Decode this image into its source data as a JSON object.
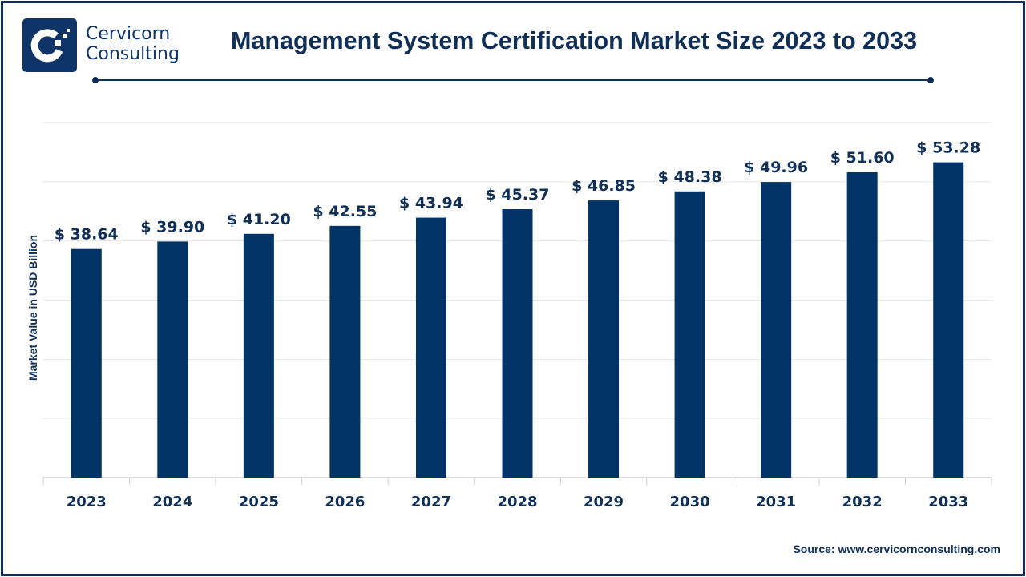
{
  "brand": {
    "line1": "Cervicorn",
    "line2": "Consulting"
  },
  "source": "Source: www.cervicornconsulting.com",
  "colors": {
    "bar": "#003366",
    "text": "#0f2f57",
    "grid": "#e6e6e6"
  },
  "chart_data": {
    "type": "bar",
    "title": "Management System Certification Market Size 2023 to 2033",
    "xlabel": "",
    "ylabel": "Market Value in USD Billion",
    "categories": [
      "2023",
      "2024",
      "2025",
      "2026",
      "2027",
      "2028",
      "2029",
      "2030",
      "2031",
      "2032",
      "2033"
    ],
    "values": [
      38.64,
      39.9,
      41.2,
      42.55,
      43.94,
      45.37,
      46.85,
      48.38,
      49.96,
      51.6,
      53.28
    ],
    "data_labels": [
      "$ 38.64",
      "$ 39.90",
      "$ 41.20",
      "$ 42.55",
      "$ 43.94",
      "$ 45.37",
      "$ 46.85",
      "$ 48.38",
      "$ 49.96",
      "$ 51.60",
      "$ 53.28"
    ],
    "ylim": [
      0,
      60
    ],
    "grid_step": 10,
    "grid": true
  }
}
